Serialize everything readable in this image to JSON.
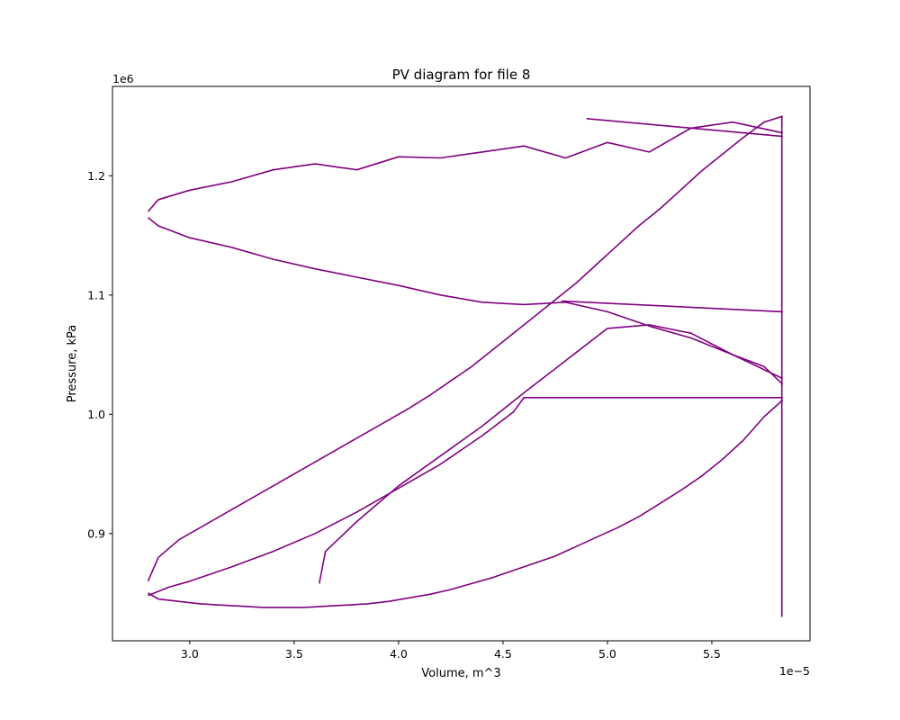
{
  "chart_data": {
    "type": "line",
    "title": "PV diagram for file 8",
    "xlabel": "Volume, m^3",
    "ylabel": "Pressure, kPa",
    "x_offset_text": "1e−5",
    "y_offset_text": "1e6",
    "xlim": [
      2.63,
      5.97
    ],
    "ylim": [
      0.81,
      1.275
    ],
    "xticks": [
      3.0,
      3.5,
      4.0,
      4.5,
      5.0,
      5.5
    ],
    "xtick_labels": [
      "3.0",
      "3.5",
      "4.0",
      "4.5",
      "5.0",
      "5.5"
    ],
    "yticks": [
      0.9,
      1.0,
      1.1,
      1.2
    ],
    "ytick_labels": [
      "0.9",
      "1.0",
      "1.1",
      "1.2"
    ],
    "grid": false,
    "line_color": "#800080",
    "series": [
      {
        "values_x": [
          5.84,
          5.75,
          5.65,
          5.55,
          5.45,
          5.35,
          5.25,
          5.15,
          5.05,
          4.95,
          4.85,
          4.75,
          4.65,
          4.55,
          4.45,
          4.35,
          4.25,
          4.15,
          4.05,
          3.95,
          3.85,
          3.75,
          3.65,
          3.55,
          3.45,
          3.35,
          3.25,
          3.15,
          3.05,
          2.95,
          2.85,
          2.8
        ],
        "values_y": [
          1.012,
          0.998,
          0.978,
          0.962,
          0.948,
          0.936,
          0.925,
          0.914,
          0.905,
          0.897,
          0.889,
          0.881,
          0.875,
          0.869,
          0.863,
          0.858,
          0.853,
          0.849,
          0.846,
          0.843,
          0.841,
          0.84,
          0.839,
          0.838,
          0.838,
          0.838,
          0.839,
          0.84,
          0.841,
          0.843,
          0.845,
          0.85
        ]
      },
      {
        "values_x": [
          2.8,
          2.85,
          2.95,
          3.05,
          3.15,
          3.25,
          3.35,
          3.45,
          3.55,
          3.65,
          3.75,
          3.85,
          3.95,
          4.05,
          4.15,
          4.25,
          4.35,
          4.45,
          4.55,
          4.65,
          4.75,
          4.85,
          4.95,
          5.05,
          5.15,
          5.25,
          5.35,
          5.45,
          5.55,
          5.65,
          5.75,
          5.84
        ],
        "values_y": [
          0.86,
          0.88,
          0.895,
          0.905,
          0.915,
          0.925,
          0.935,
          0.945,
          0.955,
          0.965,
          0.975,
          0.985,
          0.995,
          1.005,
          1.016,
          1.028,
          1.04,
          1.054,
          1.068,
          1.082,
          1.096,
          1.11,
          1.126,
          1.142,
          1.158,
          1.172,
          1.188,
          1.204,
          1.218,
          1.232,
          1.245,
          1.25
        ]
      },
      {
        "values_x": [
          5.84,
          5.6,
          5.4,
          5.2,
          5.0,
          4.8,
          4.6,
          4.4,
          4.2,
          4.0,
          3.8,
          3.6,
          3.4,
          3.2,
          3.0,
          2.85,
          2.8
        ],
        "values_y": [
          1.236,
          1.245,
          1.24,
          1.22,
          1.228,
          1.215,
          1.225,
          1.22,
          1.215,
          1.216,
          1.205,
          1.21,
          1.205,
          1.195,
          1.188,
          1.18,
          1.17
        ]
      },
      {
        "values_x": [
          2.8,
          2.85,
          3.0,
          3.2,
          3.4,
          3.6,
          3.8,
          4.0,
          4.2,
          4.4,
          4.6,
          4.8,
          5.0,
          5.2,
          5.4,
          5.6,
          5.75,
          5.84
        ],
        "values_y": [
          1.165,
          1.158,
          1.148,
          1.14,
          1.13,
          1.122,
          1.115,
          1.108,
          1.1,
          1.094,
          1.092,
          1.094,
          1.086,
          1.074,
          1.064,
          1.05,
          1.04,
          1.025
        ]
      },
      {
        "values_x": [
          2.8,
          2.9,
          3.0,
          3.2,
          3.4,
          3.6,
          3.8,
          4.0,
          4.2,
          4.4,
          4.55,
          4.6,
          5.84
        ],
        "values_y": [
          0.848,
          0.855,
          0.86,
          0.872,
          0.885,
          0.9,
          0.918,
          0.938,
          0.958,
          0.982,
          1.002,
          1.014,
          1.014
        ]
      },
      {
        "values_x": [
          3.62,
          3.65,
          3.8,
          4.0,
          4.2,
          4.4,
          4.6,
          4.8,
          5.0,
          5.2,
          5.4,
          5.6,
          5.84
        ],
        "values_y": [
          0.858,
          0.885,
          0.91,
          0.94,
          0.965,
          0.99,
          1.018,
          1.045,
          1.072,
          1.075,
          1.068,
          1.05,
          1.03
        ]
      },
      {
        "values_x": [
          4.78,
          5.84
        ],
        "values_y": [
          1.095,
          1.086
        ]
      },
      {
        "values_x": [
          4.9,
          5.84
        ],
        "values_y": [
          1.248,
          1.233
        ]
      },
      {
        "values_x": [
          5.835,
          5.835
        ],
        "values_y": [
          0.83,
          1.25
        ]
      }
    ]
  }
}
